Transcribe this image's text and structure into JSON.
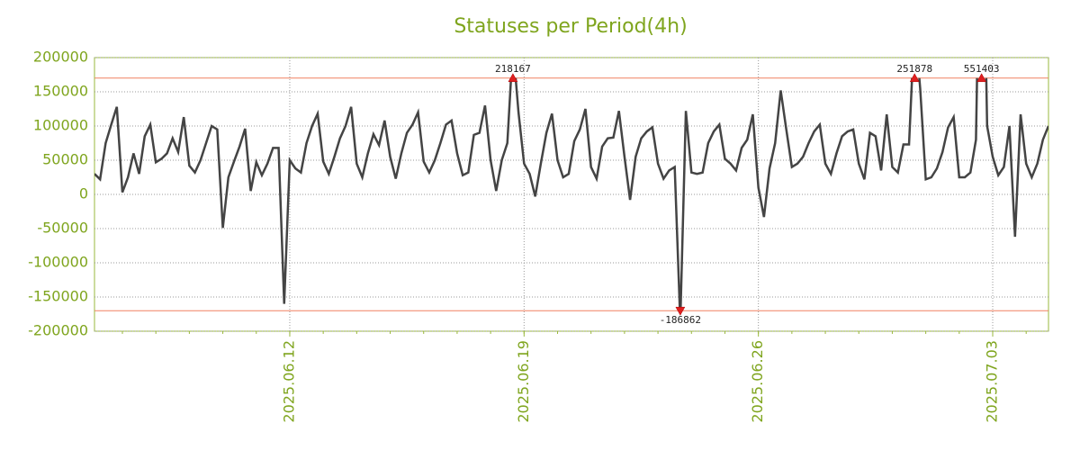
{
  "chart_data": {
    "type": "line",
    "title": "Statuses per Period(4h)",
    "categories": [
      null,
      null,
      null,
      null,
      null,
      null,
      null,
      null,
      null,
      null,
      null,
      null,
      null,
      null,
      null,
      null,
      null,
      null,
      null,
      null,
      null,
      null,
      null,
      null,
      null,
      null,
      null,
      null,
      null,
      null,
      null,
      null,
      null,
      null,
      null,
      "2025.06.12",
      null,
      null,
      null,
      null,
      null,
      null,
      null,
      null,
      null,
      null,
      null,
      null,
      null,
      null,
      null,
      null,
      null,
      null,
      null,
      null,
      null,
      null,
      null,
      null,
      null,
      null,
      null,
      null,
      null,
      null,
      null,
      null,
      null,
      null,
      null,
      null,
      null,
      null,
      null,
      null,
      null,
      "2025.06.19",
      null,
      null,
      null,
      null,
      null,
      null,
      null,
      null,
      null,
      null,
      null,
      null,
      null,
      null,
      null,
      null,
      null,
      null,
      null,
      null,
      null,
      null,
      null,
      null,
      null,
      null,
      null,
      null,
      null,
      null,
      null,
      null,
      null,
      null,
      null,
      null,
      null,
      null,
      null,
      null,
      null,
      "2025.06.26",
      null,
      null,
      null,
      null,
      null,
      null,
      null,
      null,
      null,
      null,
      null,
      null,
      null,
      null,
      null,
      null,
      null,
      null,
      null,
      null,
      null,
      null,
      null,
      null,
      null,
      null,
      null,
      null,
      null,
      null,
      null,
      null,
      null,
      null,
      null,
      null,
      null,
      null,
      null,
      null,
      null,
      "2025.07.03",
      null,
      null,
      null,
      null,
      null,
      null,
      null,
      null,
      null,
      null
    ],
    "series": [
      {
        "color": "#444444",
        "values": [
          30000,
          22000,
          75000,
          102000,
          128000,
          3000,
          25000,
          60000,
          30000,
          85000,
          102000,
          47000,
          52000,
          60000,
          82000,
          62000,
          113000,
          42000,
          32000,
          50000,
          75000,
          100000,
          95000,
          -49000,
          25000,
          48000,
          70000,
          96000,
          5000,
          47000,
          28000,
          45000,
          68000,
          68000,
          -160000,
          50000,
          38000,
          32000,
          75000,
          100000,
          118000,
          48000,
          30000,
          55000,
          82000,
          100000,
          128000,
          45000,
          25000,
          60000,
          88000,
          72000,
          108000,
          55000,
          23000,
          60000,
          90000,
          102000,
          120000,
          48000,
          32000,
          50000,
          75000,
          102000,
          108000,
          60000,
          28000,
          32000,
          87000,
          90000,
          130000,
          50000,
          5000,
          50000,
          75000,
          218167,
          120000,
          45000,
          30000,
          -3000,
          45000,
          90000,
          118000,
          50000,
          25000,
          30000,
          78000,
          95000,
          125000,
          40000,
          23000,
          70000,
          82000,
          83000,
          122000,
          55000,
          -8000,
          55000,
          82000,
          92000,
          98000,
          45000,
          23000,
          35000,
          40000,
          -186862,
          122000,
          32000,
          30000,
          32000,
          75000,
          92000,
          102000,
          52000,
          45000,
          35000,
          68000,
          80000,
          117000,
          10000,
          -33000,
          38000,
          75000,
          152000,
          95000,
          40000,
          45000,
          55000,
          75000,
          92000,
          102000,
          45000,
          30000,
          60000,
          85000,
          92000,
          95000,
          45000,
          22000,
          90000,
          85000,
          35000,
          117000,
          40000,
          32000,
          73000,
          73000,
          251878,
          155000,
          22000,
          25000,
          38000,
          62000,
          98000,
          113000,
          25000,
          25000,
          32000,
          80000,
          551403,
          100000,
          55000,
          28000,
          40000,
          100000,
          -62000,
          117000,
          45000,
          25000,
          45000,
          80000,
          100000
        ]
      }
    ],
    "ylim": [
      -200000,
      200000
    ],
    "yticks": [
      -200000,
      -150000,
      -100000,
      -50000,
      0,
      50000,
      100000,
      150000,
      200000
    ],
    "threshold_lines": [
      170000,
      -170000
    ],
    "threshold_color": "#f08060",
    "grid": true
  }
}
